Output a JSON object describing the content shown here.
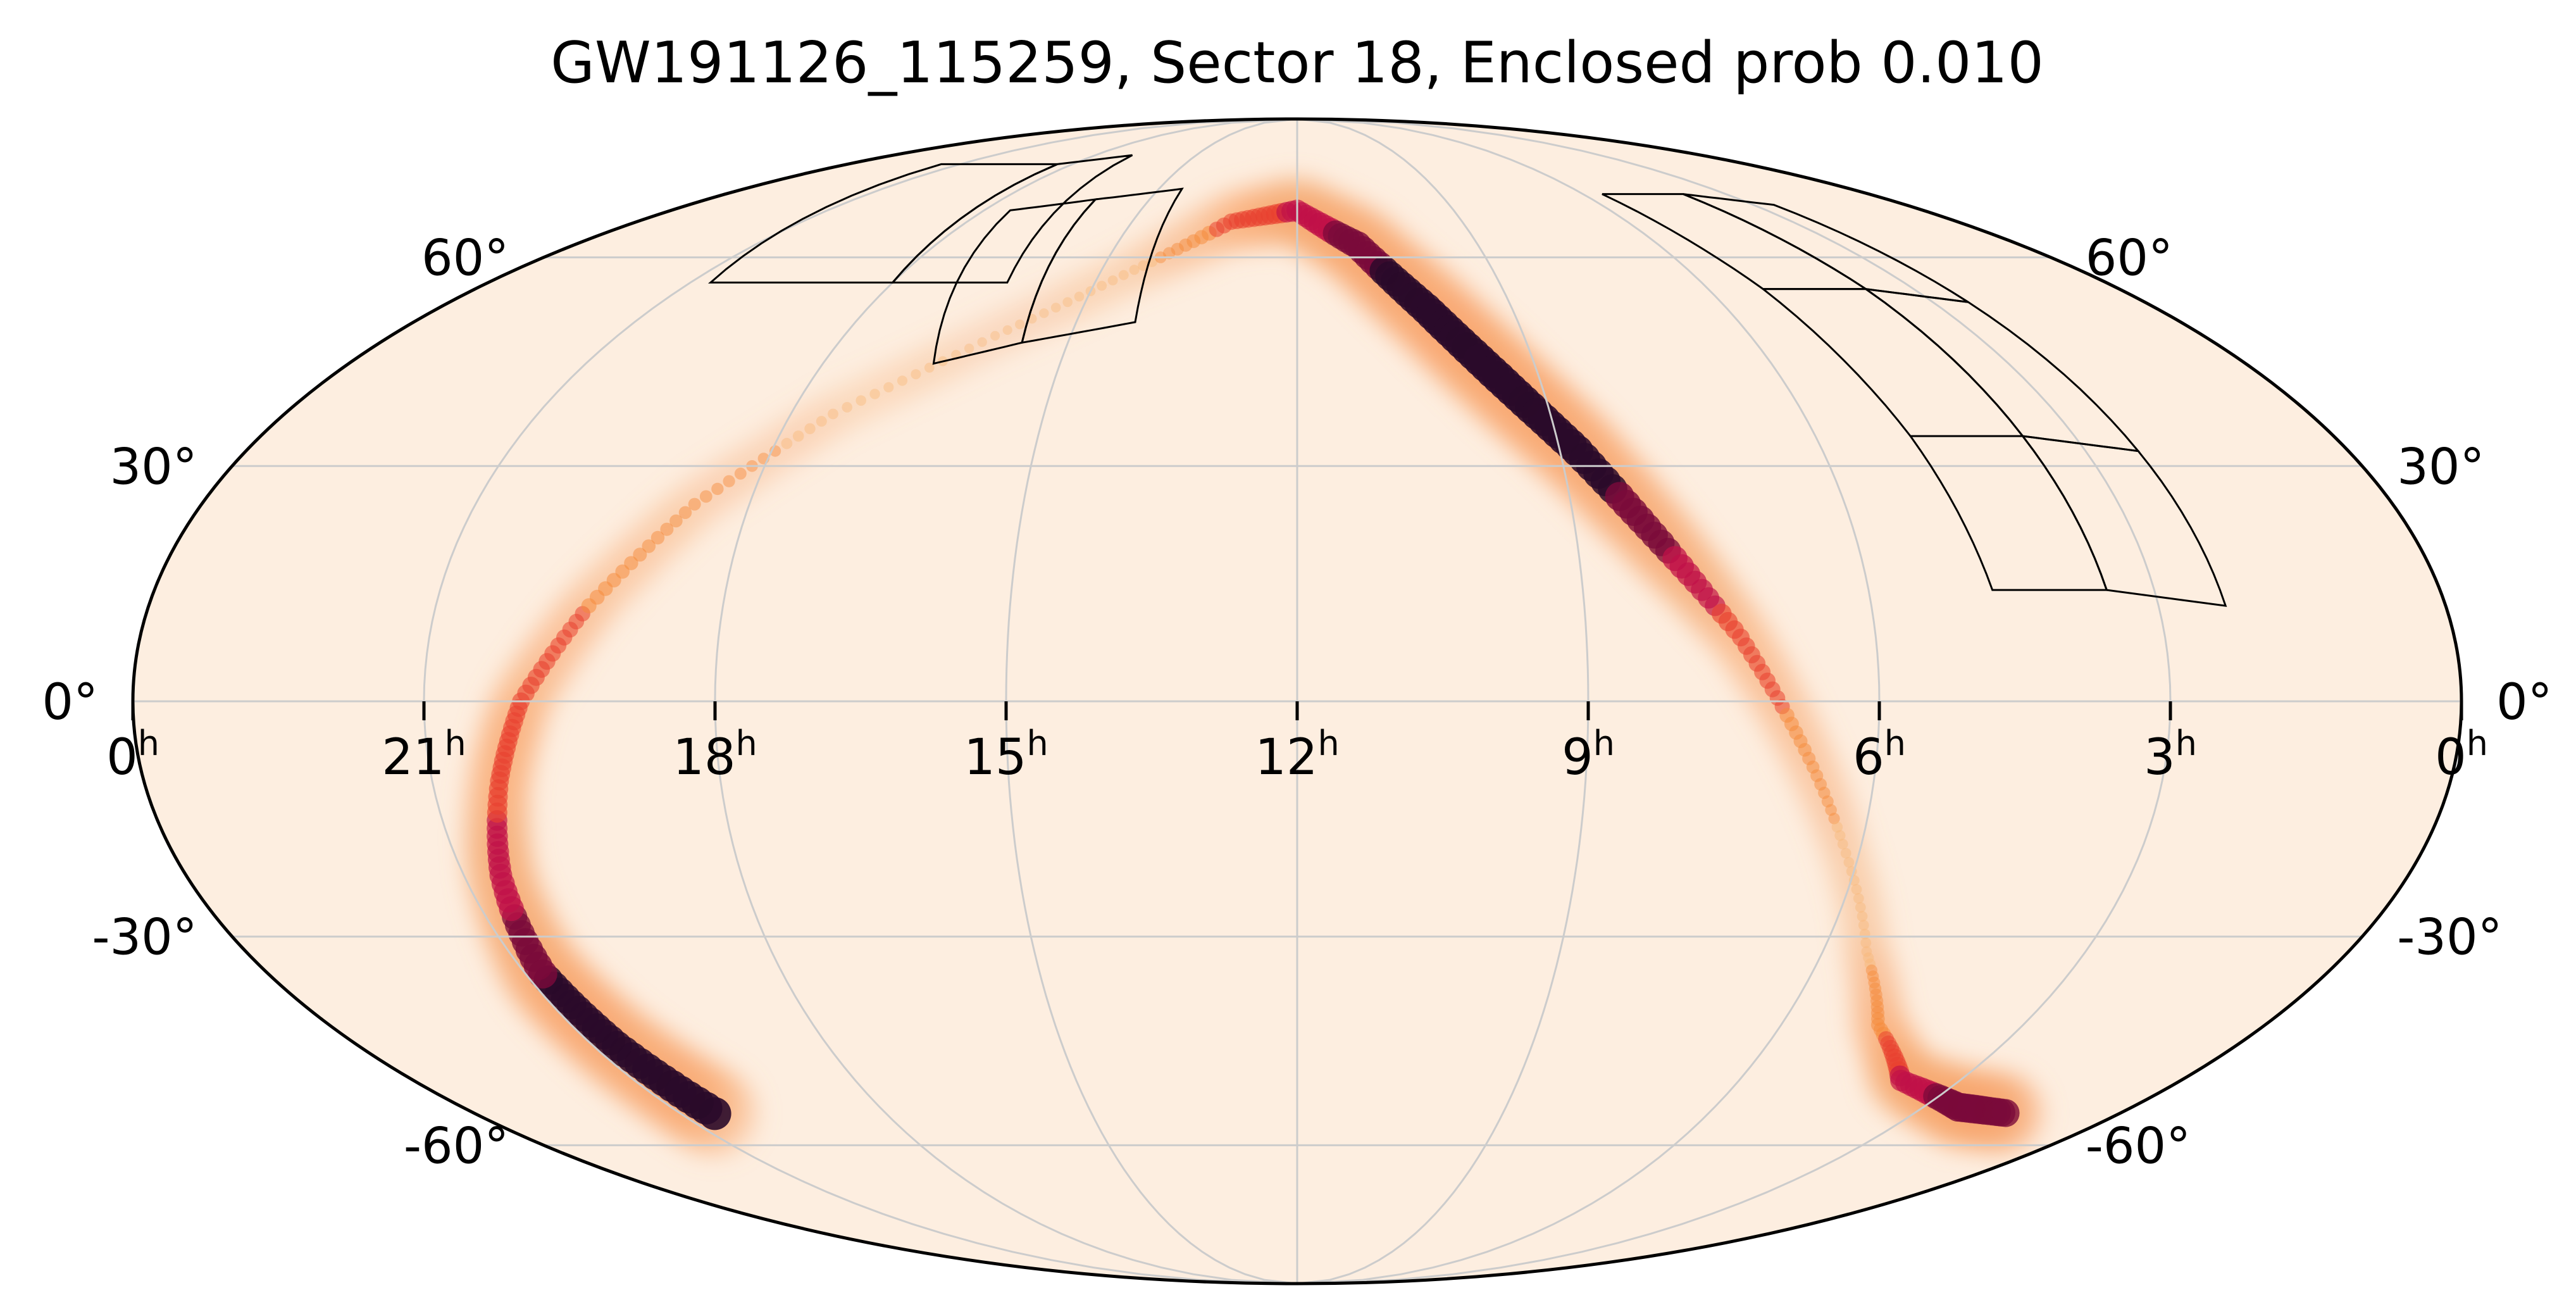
{
  "title": "GW191126_115259, Sector 18, Enclosed prob 0.010",
  "projection": "mollweide",
  "colors": {
    "background": "#fdeee0",
    "grid": "#cccccc",
    "outline": "#000000",
    "footprint": "#000000"
  },
  "ra_labels": [
    {
      "hours": 24,
      "text": "0"
    },
    {
      "hours": 21,
      "text": "21"
    },
    {
      "hours": 18,
      "text": "18"
    },
    {
      "hours": 15,
      "text": "15"
    },
    {
      "hours": 12,
      "text": "12"
    },
    {
      "hours": 9,
      "text": "9"
    },
    {
      "hours": 6,
      "text": "6"
    },
    {
      "hours": 3,
      "text": "3"
    },
    {
      "hours": 0,
      "text": "0"
    }
  ],
  "ra_unit": "h",
  "dec_labels_left": [
    {
      "dec": 60,
      "text": "60°"
    },
    {
      "dec": 30,
      "text": "30°"
    },
    {
      "dec": 0,
      "text": "0°"
    },
    {
      "dec": -30,
      "text": "-30°"
    },
    {
      "dec": -60,
      "text": "-60°"
    }
  ],
  "dec_labels_right": [
    {
      "dec": 60,
      "text": "60°"
    },
    {
      "dec": 30,
      "text": "30°"
    },
    {
      "dec": 0,
      "text": "0°"
    },
    {
      "dec": -30,
      "text": "-30°"
    },
    {
      "dec": -60,
      "text": "-60°"
    }
  ],
  "probability_band": [
    {
      "ra": 20.5,
      "dec": -55,
      "w": 1.0
    },
    {
      "ra": 20.7,
      "dec": -45,
      "w": 0.9
    },
    {
      "ra": 20.8,
      "dec": -35,
      "w": 0.85
    },
    {
      "ra": 20.6,
      "dec": -22,
      "w": 0.6
    },
    {
      "ra": 20.3,
      "dec": -10,
      "w": 0.45
    },
    {
      "ra": 20.0,
      "dec": 0,
      "w": 0.4
    },
    {
      "ra": 19.4,
      "dec": 12,
      "w": 0.3
    },
    {
      "ra": 18.6,
      "dec": 25,
      "w": 0.2
    },
    {
      "ra": 17.5,
      "dec": 37,
      "w": 0.12
    },
    {
      "ra": 16.0,
      "dec": 48,
      "w": 0.08
    },
    {
      "ra": 14.5,
      "dec": 58,
      "w": 0.1
    },
    {
      "ra": 13.2,
      "dec": 66,
      "w": 0.35
    },
    {
      "ra": 12.0,
      "dec": 68,
      "w": 0.55
    },
    {
      "ra": 11.0,
      "dec": 62,
      "w": 0.8
    },
    {
      "ra": 10.2,
      "dec": 52,
      "w": 0.95
    },
    {
      "ra": 9.5,
      "dec": 42,
      "w": 1.0
    },
    {
      "ra": 8.8,
      "dec": 32,
      "w": 0.95
    },
    {
      "ra": 8.1,
      "dec": 20,
      "w": 0.75
    },
    {
      "ra": 7.4,
      "dec": 8,
      "w": 0.4
    },
    {
      "ra": 6.8,
      "dec": -5,
      "w": 0.25
    },
    {
      "ra": 6.2,
      "dec": -18,
      "w": 0.12
    },
    {
      "ra": 5.5,
      "dec": -32,
      "w": 0.12
    },
    {
      "ra": 4.8,
      "dec": -42,
      "w": 0.25
    },
    {
      "ra": 3.8,
      "dec": -50,
      "w": 0.55
    },
    {
      "ra": 2.5,
      "dec": -54,
      "w": 0.85
    },
    {
      "ra": 1.6,
      "dec": -55,
      "w": 0.8
    }
  ],
  "footprints": [
    [
      [
        20.7,
        56
      ],
      [
        18.0,
        56
      ],
      [
        18.4,
        77
      ],
      [
        21.5,
        77
      ]
    ],
    [
      [
        18.0,
        56
      ],
      [
        16.3,
        56
      ],
      [
        16.9,
        79
      ],
      [
        18.4,
        77
      ]
    ],
    [
      [
        16.6,
        44
      ],
      [
        15.6,
        47
      ],
      [
        16.1,
        70
      ],
      [
        17.5,
        68
      ]
    ],
    [
      [
        15.6,
        47
      ],
      [
        14.2,
        50
      ],
      [
        14.5,
        72
      ],
      [
        16.1,
        70
      ]
    ],
    [
      [
        5.2,
        55
      ],
      [
        3.7,
        55
      ],
      [
        3.9,
        71
      ],
      [
        5.6,
        71
      ]
    ],
    [
      [
        3.7,
        55
      ],
      [
        2.5,
        53
      ],
      [
        2.6,
        69
      ],
      [
        3.9,
        71
      ]
    ],
    [
      [
        4.9,
        34
      ],
      [
        3.6,
        34
      ],
      [
        3.7,
        55
      ],
      [
        5.2,
        55
      ]
    ],
    [
      [
        3.6,
        34
      ],
      [
        2.4,
        32
      ],
      [
        2.5,
        53
      ],
      [
        3.7,
        55
      ]
    ],
    [
      [
        4.7,
        14
      ],
      [
        3.5,
        14
      ],
      [
        3.6,
        34
      ],
      [
        4.9,
        34
      ]
    ],
    [
      [
        3.5,
        14
      ],
      [
        2.3,
        12
      ],
      [
        2.4,
        32
      ],
      [
        3.6,
        34
      ]
    ]
  ]
}
